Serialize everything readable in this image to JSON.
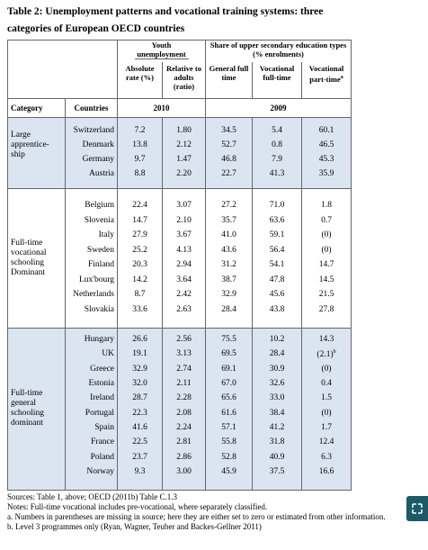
{
  "title": "Table 2: Unemployment patterns and vocational training systems: three categories of European OECD countries",
  "header": {
    "group_headers": [
      "Youth unemployment",
      "Share of upper secondary education types (% enrolments)"
    ],
    "columns": [
      "Absolute rate (%)",
      "Relative to adults (ratio)",
      "General full time",
      "Vocational full-time",
      "Vocational part-time"
    ],
    "columns_note": "a",
    "category_label": "Category",
    "countries_label": "Countries",
    "years": [
      "2010",
      "2009"
    ]
  },
  "groups": [
    {
      "category": "Large apprentice-ship",
      "rows": [
        [
          "Switzerland",
          "7.2",
          "1.80",
          "34.5",
          "5.4",
          "60.1"
        ],
        [
          "Denmark",
          "13.8",
          "2.12",
          "52.7",
          "0.8",
          "46.5"
        ],
        [
          "Germany",
          "9.7",
          "1.47",
          "46.8",
          "7.9",
          "45.3"
        ],
        [
          "Austria",
          "8.8",
          "2.20",
          "22.7",
          "41.3",
          "35.9"
        ]
      ]
    },
    {
      "category": "Full-time vocational schooling Dominant",
      "rows": [
        [
          "Belgium",
          "22.4",
          "3.07",
          "27.2",
          "71.0",
          "1.8"
        ],
        [
          "Slovenia",
          "14.7",
          "2.10",
          "35.7",
          "63.6",
          "0.7"
        ],
        [
          "Italy",
          "27.9",
          "3.67",
          "41.0",
          "59.1",
          "(0)"
        ],
        [
          "Sweden",
          "25.2",
          "4.13",
          "43.6",
          "56.4",
          "(0)"
        ],
        [
          "Finland",
          "20.3",
          "2.94",
          "31.2",
          "54.1",
          "14.7"
        ],
        [
          "Lux'bourg",
          "14.2",
          "3.64",
          "38.7",
          "47.8",
          "14.5"
        ],
        [
          "Netherlands",
          "8.7",
          "2.42",
          "32.9",
          "45.6",
          "21.5"
        ],
        [
          "Slovakia",
          "33.6",
          "2.63",
          "28.4",
          "43.8",
          "27.8"
        ]
      ]
    },
    {
      "category": "Full-time general schooling dominant",
      "rows": [
        [
          "Hungary",
          "26.6",
          "2.56",
          "75.5",
          "10.2",
          "14.3"
        ],
        [
          "UK",
          "19.1",
          "3.13",
          "69.5",
          "28.4",
          {
            "value": "(2.1)",
            "note": "b"
          }
        ],
        [
          "Greece",
          "32.9",
          "2.74",
          "69.1",
          "30.9",
          "(0)"
        ],
        [
          "Estonia",
          "32.0",
          "2.11",
          "67.0",
          "32.6",
          "0.4"
        ],
        [
          "Ireland",
          "28.7",
          "2.28",
          "65.6",
          "33.0",
          "1.5"
        ],
        [
          "Portugal",
          "22.3",
          "2.08",
          "61.6",
          "38.4",
          "(0)"
        ],
        [
          "Spain",
          "41.6",
          "2.24",
          "57.1",
          "41.2",
          "1.7"
        ],
        [
          "France",
          "22.5",
          "2.81",
          "55.8",
          "31.8",
          "12.4"
        ],
        [
          "Poland",
          "23.7",
          "2.86",
          "52.8",
          "40.9",
          "6.3"
        ],
        [
          "Norway",
          "9.3",
          "3.00",
          "45.9",
          "37.5",
          "16.6"
        ]
      ]
    }
  ],
  "notes": [
    "Sources: Table 1, above; OECD (2011b) Table C.1.3",
    "Notes: Full-time vocational includes pre-vocational, where separately classified.",
    "a. Numbers in parentheses are missing in source; here they are either set to zero or estimated from other information.",
    "b. Level 3 programmes only (Ryan, Wagner, Teuber and Backes-Gellner 2011)"
  ]
}
